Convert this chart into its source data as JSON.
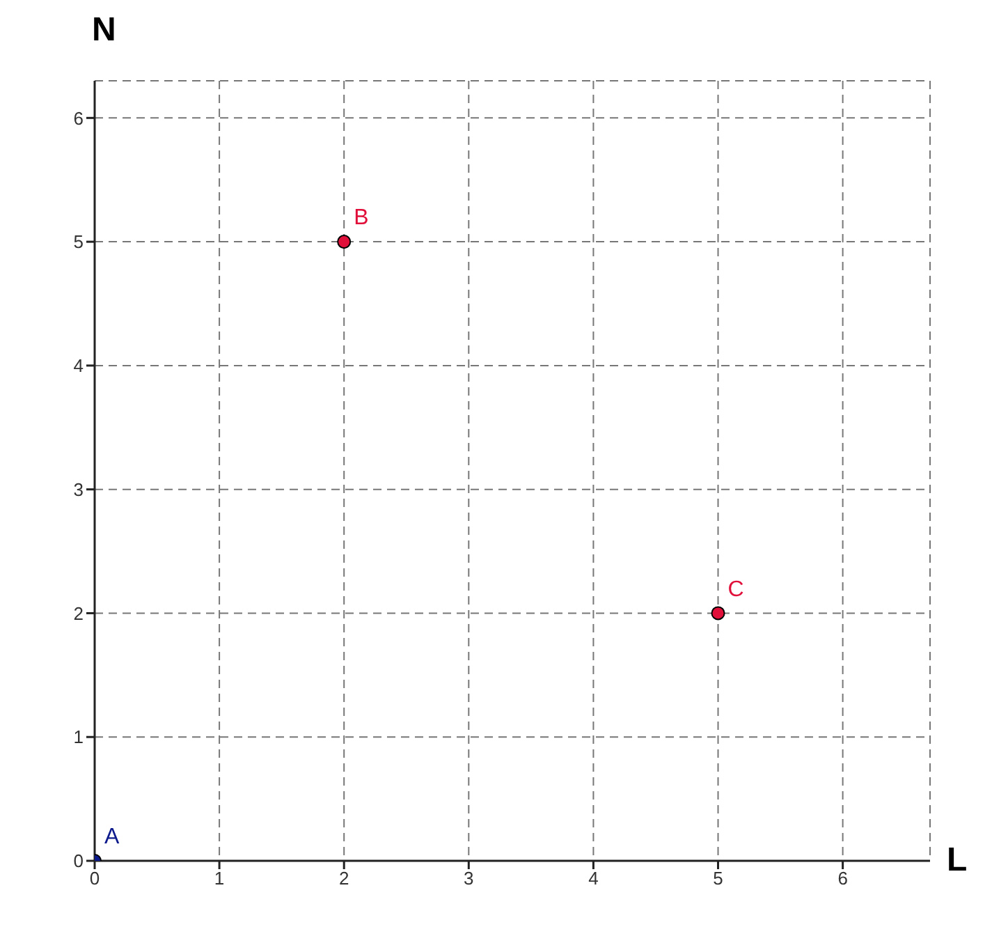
{
  "chart_data": {
    "type": "scatter",
    "xlabel": "L",
    "ylabel": "N",
    "series": [
      {
        "color": "#0d1a8c",
        "x": [
          0
        ],
        "values": [
          0
        ]
      },
      {
        "color": "#e0103a",
        "x": [
          2
        ],
        "values": [
          5
        ]
      },
      {
        "color": "#e0103a",
        "x": [
          5
        ],
        "values": [
          2
        ]
      }
    ],
    "annotations": [
      {
        "text": "A",
        "x": 0,
        "y": 0
      },
      {
        "text": "B",
        "x": 2,
        "y": 5
      },
      {
        "text": "C",
        "x": 5,
        "y": 2
      }
    ],
    "xlim": [
      0,
      6.7
    ],
    "xticks": [
      0,
      1,
      2,
      3,
      4,
      5,
      6
    ],
    "ylim": [
      0,
      6.3
    ],
    "yticks": [
      0,
      1,
      2,
      3,
      4,
      5,
      6
    ],
    "grid": true,
    "marker": "circle"
  }
}
